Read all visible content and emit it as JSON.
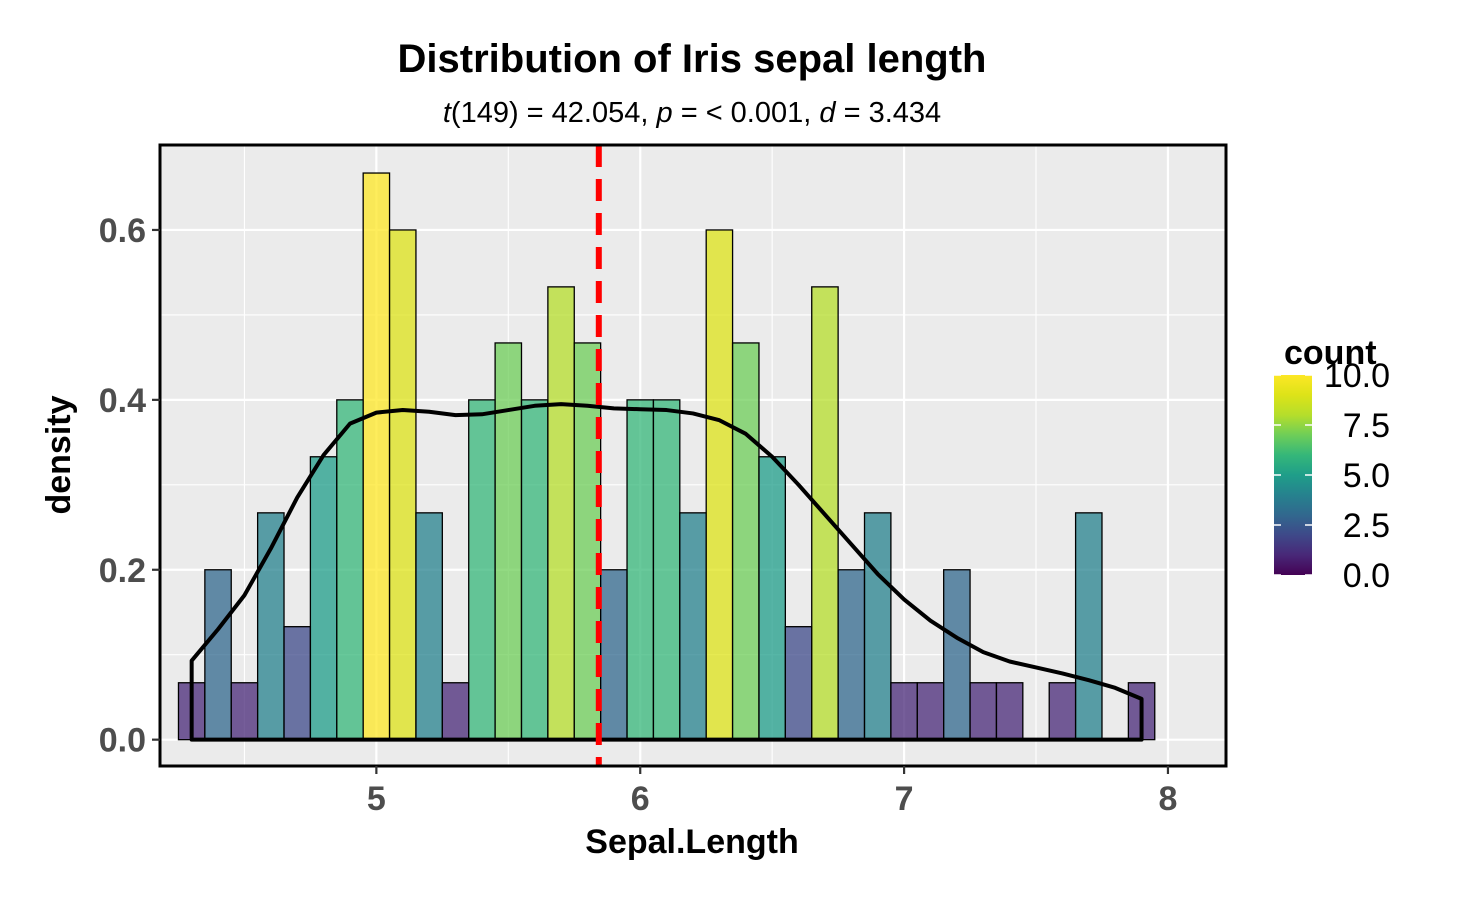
{
  "chart_data": {
    "type": "bar",
    "title": "Distribution of Iris sepal length",
    "subtitle": {
      "t_symbol": "t",
      "t_text": "(149) = 42.054, ",
      "p_symbol": "p",
      "p_text": " = < 0.001, ",
      "d_symbol": "d",
      "d_text": " = 3.434"
    },
    "xlabel": "Sepal.Length",
    "ylabel": "density",
    "xlim": [
      4.18,
      8.22
    ],
    "ylim": [
      -0.031,
      0.7
    ],
    "x_ticks": [
      5,
      6,
      7,
      8
    ],
    "x_tick_labels": [
      "5",
      "6",
      "7",
      "8"
    ],
    "y_ticks": [
      0.0,
      0.2,
      0.4,
      0.6
    ],
    "y_tick_labels": [
      "0.0",
      "0.2",
      "0.4",
      "0.6"
    ],
    "grid": true,
    "bins": {
      "start": 4.25,
      "width": 0.1,
      "counts": [
        1,
        3,
        1,
        4,
        2,
        5,
        6,
        10,
        9,
        4,
        1,
        6,
        7,
        6,
        8,
        7,
        3,
        6,
        6,
        4,
        9,
        7,
        5,
        2,
        8,
        3,
        4,
        1,
        1,
        3,
        1,
        1,
        0,
        1,
        4,
        0,
        1
      ],
      "density": [
        0.067,
        0.2,
        0.067,
        0.267,
        0.133,
        0.333,
        0.4,
        0.667,
        0.6,
        0.267,
        0.067,
        0.4,
        0.467,
        0.4,
        0.533,
        0.467,
        0.2,
        0.4,
        0.4,
        0.267,
        0.6,
        0.467,
        0.333,
        0.133,
        0.533,
        0.2,
        0.267,
        0.067,
        0.067,
        0.2,
        0.067,
        0.067,
        0.0,
        0.067,
        0.267,
        0.0,
        0.067
      ]
    },
    "density_curve": {
      "x": [
        4.3,
        4.4,
        4.5,
        4.6,
        4.7,
        4.8,
        4.9,
        5.0,
        5.1,
        5.2,
        5.3,
        5.4,
        5.5,
        5.6,
        5.7,
        5.8,
        5.9,
        6.0,
        6.1,
        6.2,
        6.3,
        6.4,
        6.5,
        6.6,
        6.7,
        6.8,
        6.9,
        7.0,
        7.1,
        7.2,
        7.3,
        7.4,
        7.5,
        7.6,
        7.7,
        7.8,
        7.9
      ],
      "y": [
        0.093,
        0.13,
        0.17,
        0.225,
        0.285,
        0.335,
        0.372,
        0.385,
        0.388,
        0.386,
        0.382,
        0.383,
        0.388,
        0.393,
        0.395,
        0.393,
        0.39,
        0.389,
        0.388,
        0.384,
        0.376,
        0.36,
        0.333,
        0.3,
        0.265,
        0.23,
        0.195,
        0.165,
        0.14,
        0.12,
        0.103,
        0.092,
        0.085,
        0.078,
        0.07,
        0.061,
        0.048
      ]
    },
    "mean_line": 5.843,
    "legend": {
      "title": "count",
      "placement": "right",
      "labels": [
        "10.0",
        "7.5",
        "5.0",
        "2.5",
        "0.0"
      ],
      "values": [
        10,
        7.5,
        5,
        2.5,
        0
      ],
      "range": [
        0,
        10
      ]
    },
    "colors": {
      "panel": "#ebebeb",
      "grid": "#ffffff",
      "mean_line": "#ff0000",
      "curve": "#000000",
      "bar_outline": "#000000",
      "tick_label": "#4d4d4d"
    }
  }
}
